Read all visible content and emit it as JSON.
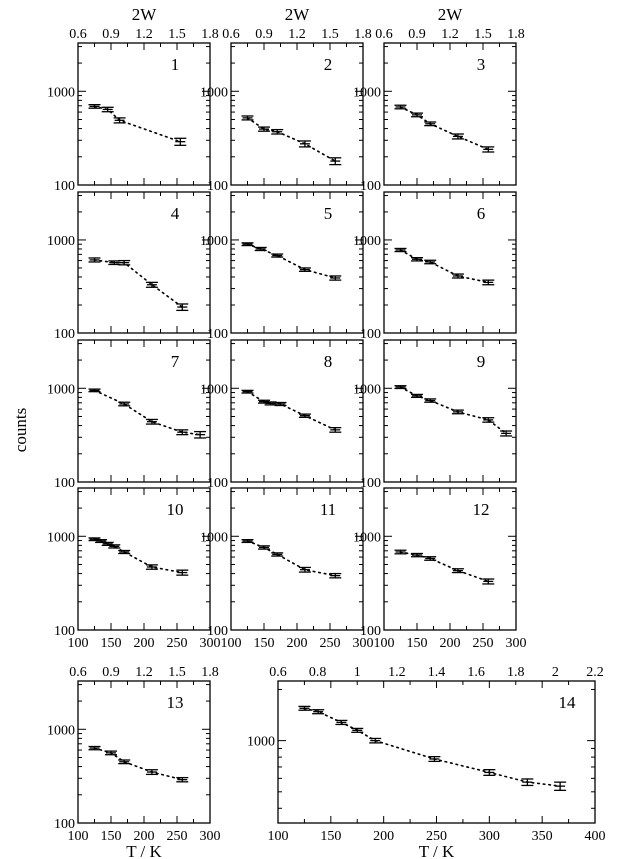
{
  "figure": {
    "ylabel": "counts",
    "top_axis_label": "2W",
    "bottom_axis_label": "T / K",
    "colors": {
      "axis": "#000000",
      "data": "#000000",
      "background": "#ffffff"
    }
  },
  "chart_data": [
    {
      "type": "line",
      "panel": "1",
      "xlabel": "",
      "ylabel": "counts",
      "x_top_label": "2W",
      "x_top_ticks": [
        "0.6",
        "0.9",
        "1.2",
        "1.5",
        "1.8"
      ],
      "xlim": [
        100,
        300
      ],
      "ylim": [
        100,
        2000
      ],
      "y_scale": "log",
      "y_ticks": [
        "100",
        "1000"
      ],
      "series": [
        {
          "x": [
            125,
            145,
            163,
            255
          ],
          "y": [
            690,
            640,
            490,
            290
          ],
          "err": [
            30,
            35,
            30,
            25
          ]
        }
      ]
    },
    {
      "type": "line",
      "panel": "2",
      "xlabel": "",
      "ylabel": "counts",
      "x_top_label": "2W",
      "x_top_ticks": [
        "0.6",
        "0.9",
        "1.2",
        "1.5",
        "1.8"
      ],
      "xlim": [
        100,
        300
      ],
      "ylim": [
        100,
        2000
      ],
      "y_scale": "log",
      "y_ticks": [
        "100",
        "1000"
      ],
      "series": [
        {
          "x": [
            125,
            150,
            170,
            212,
            258
          ],
          "y": [
            520,
            395,
            370,
            275,
            180
          ],
          "err": [
            25,
            20,
            20,
            20,
            15
          ]
        }
      ]
    },
    {
      "type": "line",
      "panel": "3",
      "xlabel": "",
      "ylabel": "counts",
      "x_top_label": "2W",
      "x_top_ticks": [
        "0.6",
        "0.9",
        "1.2",
        "1.5",
        "1.8"
      ],
      "xlim": [
        100,
        300
      ],
      "ylim": [
        100,
        2000
      ],
      "y_scale": "log",
      "y_ticks": [
        "100",
        "1000"
      ],
      "series": [
        {
          "x": [
            125,
            150,
            170,
            212,
            258
          ],
          "y": [
            680,
            560,
            450,
            330,
            240
          ],
          "err": [
            30,
            25,
            20,
            20,
            15
          ]
        }
      ]
    },
    {
      "type": "line",
      "panel": "4",
      "xlabel": "",
      "ylabel": "counts",
      "xlim": [
        100,
        300
      ],
      "ylim": [
        100,
        2000
      ],
      "y_scale": "log",
      "y_ticks": [
        "100",
        "1000"
      ],
      "series": [
        {
          "x": [
            125,
            155,
            170,
            212,
            258
          ],
          "y": [
            610,
            570,
            570,
            330,
            190
          ],
          "err": [
            30,
            25,
            30,
            20,
            15
          ]
        }
      ]
    },
    {
      "type": "line",
      "panel": "5",
      "xlabel": "",
      "ylabel": "counts",
      "xlim": [
        100,
        300
      ],
      "ylim": [
        100,
        2000
      ],
      "y_scale": "log",
      "y_ticks": [
        "100",
        "1000"
      ],
      "series": [
        {
          "x": [
            125,
            145,
            170,
            212,
            258
          ],
          "y": [
            900,
            800,
            680,
            480,
            390
          ],
          "err": [
            30,
            30,
            25,
            20,
            20
          ]
        }
      ]
    },
    {
      "type": "line",
      "panel": "6",
      "xlabel": "",
      "ylabel": "counts",
      "xlim": [
        100,
        300
      ],
      "ylim": [
        100,
        2000
      ],
      "y_scale": "log",
      "y_ticks": [
        "100",
        "1000"
      ],
      "series": [
        {
          "x": [
            125,
            150,
            170,
            212,
            258
          ],
          "y": [
            780,
            620,
            580,
            410,
            350
          ],
          "err": [
            30,
            25,
            25,
            20,
            20
          ]
        }
      ]
    },
    {
      "type": "line",
      "panel": "7",
      "xlabel": "",
      "ylabel": "counts",
      "xlim": [
        100,
        300
      ],
      "ylim": [
        100,
        2000
      ],
      "y_scale": "log",
      "y_ticks": [
        "100",
        "1000"
      ],
      "series": [
        {
          "x": [
            125,
            170,
            212,
            258,
            285
          ],
          "y": [
            950,
            680,
            440,
            340,
            320
          ],
          "err": [
            30,
            30,
            25,
            20,
            25
          ]
        }
      ]
    },
    {
      "type": "line",
      "panel": "8",
      "xlabel": "",
      "ylabel": "counts",
      "xlim": [
        100,
        300
      ],
      "ylim": [
        100,
        2000
      ],
      "y_scale": "log",
      "y_ticks": [
        "100",
        "1000"
      ],
      "series": [
        {
          "x": [
            125,
            150,
            160,
            175,
            212,
            258
          ],
          "y": [
            920,
            720,
            690,
            680,
            510,
            360
          ],
          "err": [
            30,
            25,
            25,
            25,
            20,
            20
          ]
        }
      ]
    },
    {
      "type": "line",
      "panel": "9",
      "xlabel": "",
      "ylabel": "counts",
      "xlim": [
        100,
        300
      ],
      "ylim": [
        100,
        2000
      ],
      "y_scale": "log",
      "y_ticks": [
        "100",
        "1000"
      ],
      "series": [
        {
          "x": [
            125,
            150,
            170,
            212,
            258,
            285
          ],
          "y": [
            1030,
            830,
            740,
            560,
            460,
            330
          ],
          "err": [
            35,
            30,
            30,
            25,
            25,
            20
          ]
        }
      ]
    },
    {
      "type": "line",
      "panel": "10",
      "xlabel": "",
      "ylabel": "counts",
      "x_ticks": [
        "100",
        "150",
        "200",
        "250",
        "300"
      ],
      "xlim": [
        100,
        300
      ],
      "ylim": [
        100,
        2000
      ],
      "y_scale": "log",
      "y_ticks": [
        "100",
        "1000"
      ],
      "series": [
        {
          "x": [
            125,
            135,
            145,
            155,
            170,
            212,
            258
          ],
          "y": [
            930,
            890,
            830,
            780,
            680,
            470,
            410
          ],
          "err": [
            30,
            30,
            30,
            30,
            25,
            25,
            25
          ]
        }
      ]
    },
    {
      "type": "line",
      "panel": "11",
      "xlabel": "",
      "ylabel": "counts",
      "x_ticks": [
        "100",
        "150",
        "200",
        "250",
        "300"
      ],
      "xlim": [
        100,
        300
      ],
      "ylim": [
        100,
        2000
      ],
      "y_scale": "log",
      "y_ticks": [
        "100",
        "1000"
      ],
      "series": [
        {
          "x": [
            125,
            150,
            170,
            212,
            258
          ],
          "y": [
            890,
            760,
            640,
            440,
            380
          ],
          "err": [
            30,
            30,
            25,
            25,
            20
          ]
        }
      ]
    },
    {
      "type": "line",
      "panel": "12",
      "xlabel": "",
      "ylabel": "counts",
      "x_ticks": [
        "100",
        "150",
        "200",
        "250",
        "300"
      ],
      "xlim": [
        100,
        300
      ],
      "ylim": [
        100,
        2000
      ],
      "y_scale": "log",
      "y_ticks": [
        "100",
        "1000"
      ],
      "series": [
        {
          "x": [
            125,
            150,
            170,
            212,
            258
          ],
          "y": [
            680,
            630,
            580,
            430,
            330
          ],
          "err": [
            30,
            25,
            25,
            20,
            20
          ]
        }
      ]
    },
    {
      "type": "line",
      "panel": "13",
      "xlabel": "T / K",
      "ylabel": "counts",
      "x_ticks": [
        "100",
        "150",
        "200",
        "250",
        "300"
      ],
      "x_top_ticks": [
        "0.6",
        "0.9",
        "1.2",
        "1.5",
        "1.8"
      ],
      "xlim": [
        100,
        300
      ],
      "ylim": [
        100,
        2000
      ],
      "y_scale": "log",
      "y_ticks": [
        "100",
        "1000"
      ],
      "series": [
        {
          "x": [
            125,
            150,
            170,
            212,
            258
          ],
          "y": [
            630,
            560,
            450,
            350,
            290
          ],
          "err": [
            25,
            25,
            20,
            20,
            15
          ]
        }
      ]
    },
    {
      "type": "line",
      "panel": "14",
      "xlabel": "T / K",
      "ylabel": "counts",
      "x_ticks": [
        "100",
        "150",
        "200",
        "250",
        "300",
        "350",
        "400"
      ],
      "x_top_ticks": [
        "0.6",
        "0.8",
        "1",
        "1.2",
        "1.4",
        "1.6",
        "1.8",
        "2",
        "2.2"
      ],
      "xlim": [
        100,
        400
      ],
      "ylim": [
        500,
        2000
      ],
      "y_scale": "log",
      "y_ticks": [
        "1000"
      ],
      "series": [
        {
          "x": [
            125,
            138,
            160,
            175,
            192,
            248,
            300,
            336,
            367
          ],
          "y": [
            1550,
            1480,
            1280,
            1150,
            1000,
            780,
            650,
            570,
            540
          ],
          "err": [
            40,
            40,
            35,
            30,
            30,
            25,
            25,
            25,
            30
          ]
        }
      ]
    }
  ]
}
